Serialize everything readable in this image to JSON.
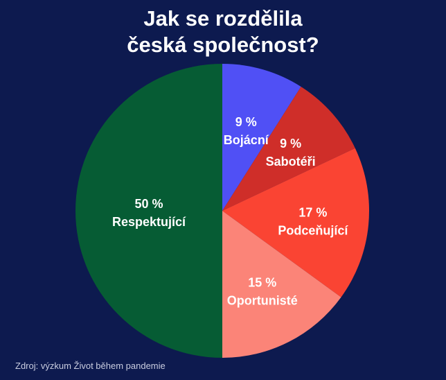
{
  "title_lines": [
    "Jak se rozdělila",
    "česká společnost?"
  ],
  "source": "Zdroj: výzkum Život během pandemie",
  "chart_data": {
    "type": "pie",
    "title": "Jak se rozdělila česká společnost?",
    "unit": "%",
    "slices": [
      {
        "label": "Bojácní",
        "value": 9,
        "value_text": "9 %",
        "color": "#5050f5"
      },
      {
        "label": "Sabotéři",
        "value": 9,
        "value_text": "9 %",
        "color": "#cf2e29"
      },
      {
        "label": "Podceňující",
        "value": 17,
        "value_text": "17 %",
        "color": "#fa4433"
      },
      {
        "label": "Oportunisté",
        "value": 15,
        "value_text": "15 %",
        "color": "#fb8478"
      },
      {
        "label": "Respektující",
        "value": 50,
        "value_text": "50 %",
        "color": "#065c34"
      }
    ],
    "start": "12 o'clock",
    "direction": "clockwise"
  }
}
